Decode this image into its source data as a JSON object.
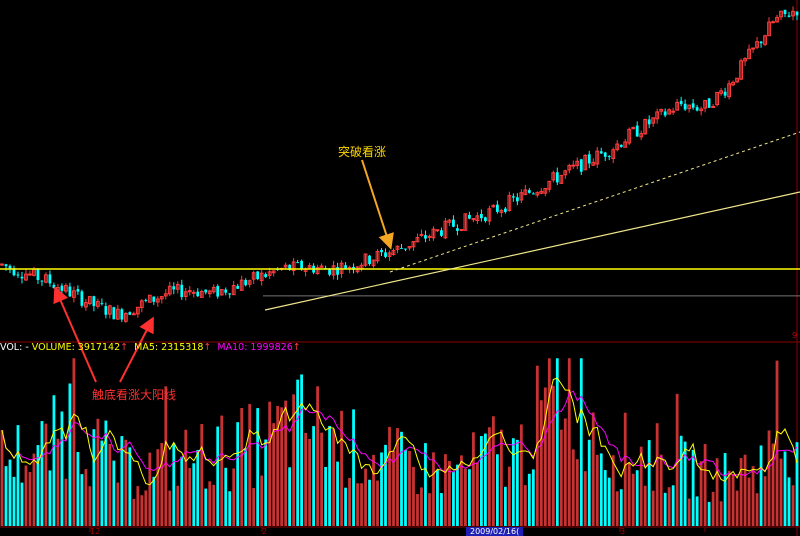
{
  "panel": {
    "volume_legend": {
      "prefix": "VOL: -",
      "volume_label": "VOLUME: 3917142",
      "ma5_label": "MA5: 2315318",
      "ma10_label": "MA10: 1999826",
      "up_arrow": "↑"
    },
    "annotations": {
      "breakout": "突破看涨",
      "bottom": "触底看涨大阳线"
    },
    "date_highlight": "2009/02/16(",
    "x_ticks": [
      "12",
      "2",
      "3"
    ],
    "right_marker": "9"
  },
  "colors": {
    "up": "#ff3c3c",
    "down": "#00ffff",
    "ma5": "#ffff00",
    "ma10": "#ff00ff",
    "yellow_line": "#ffff00",
    "grid": "#8b0000",
    "breakout_text": "#ffd700",
    "bottom_text": "#ff3030"
  },
  "chart_data": {
    "type": "candlestick",
    "price_trend_shape": [
      54,
      50,
      46,
      40,
      34,
      30,
      35,
      40,
      42,
      40,
      44,
      48,
      52,
      53,
      52,
      54,
      58,
      62,
      67,
      72,
      76,
      80,
      86,
      92,
      98,
      104,
      110,
      118,
      125,
      132,
      130,
      140,
      156,
      172,
      178
    ],
    "volume_trend_shape": [
      30,
      32,
      34,
      50,
      34,
      26,
      24,
      28,
      30,
      32,
      34,
      36,
      42,
      46,
      40,
      34,
      30,
      28,
      26,
      24,
      26,
      34,
      30,
      48,
      66,
      50,
      34,
      32,
      30,
      26,
      24,
      22,
      26,
      32,
      40
    ],
    "resistance_level": 52,
    "support_level": 39
  }
}
